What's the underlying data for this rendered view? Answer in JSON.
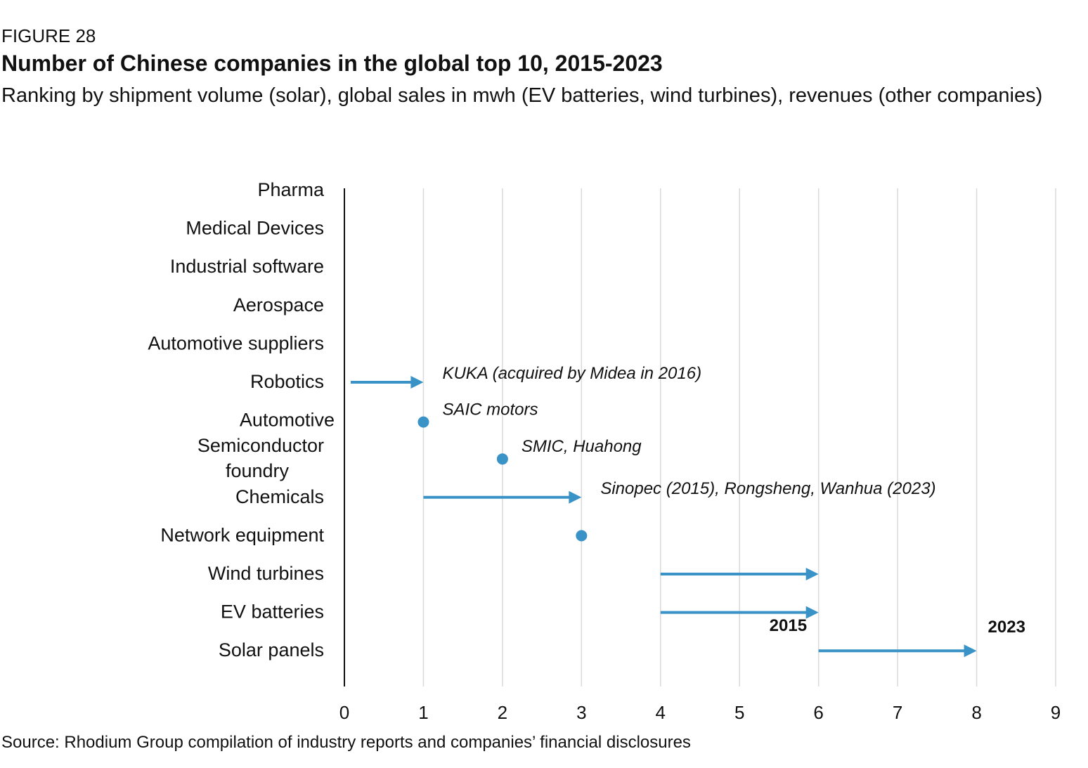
{
  "header": {
    "figure_label": "FIGURE 28",
    "title": "Number of Chinese companies in the global top 10, 2015-2023",
    "subtitle": "Ranking by shipment volume (solar), global sales in mwh (EV batteries, wind turbines), revenues (other companies)"
  },
  "footer": {
    "source": "Source: Rhodium Group compilation of industry reports and companies’ financial disclosures"
  },
  "colors": {
    "series": "#3a93c6",
    "axis": "#111111",
    "grid": "#d9d9d9",
    "text": "#111111"
  },
  "chart_data": {
    "type": "arrow-dot",
    "title": "Number of Chinese companies in the global top 10, 2015-2023",
    "xlim": [
      0,
      9
    ],
    "x_ticks": [
      "0",
      "1",
      "2",
      "3",
      "4",
      "5",
      "6",
      "7",
      "8",
      "9"
    ],
    "grid": true,
    "categories": [
      {
        "label": [
          "Pharma"
        ],
        "from": null,
        "to": null,
        "annotation": ""
      },
      {
        "label": [
          "Medical Devices"
        ],
        "from": null,
        "to": null,
        "annotation": ""
      },
      {
        "label": [
          "Industrial software"
        ],
        "from": null,
        "to": null,
        "annotation": ""
      },
      {
        "label": [
          "Aerospace"
        ],
        "from": null,
        "to": null,
        "annotation": ""
      },
      {
        "label": [
          "Automotive suppliers"
        ],
        "from": null,
        "to": null,
        "annotation": ""
      },
      {
        "label": [
          "Robotics"
        ],
        "from": 0,
        "to": 1,
        "annotation": "KUKA (acquired by Midea in 2016)"
      },
      {
        "label": [
          "Automotive"
        ],
        "from": 1,
        "to": 1,
        "annotation": "SAIC motors"
      },
      {
        "label": [
          "Semiconductor",
          "foundry"
        ],
        "from": 2,
        "to": 2,
        "annotation": "SMIC, Huahong"
      },
      {
        "label": [
          "Chemicals"
        ],
        "from": 1,
        "to": 3,
        "annotation": "Sinopec (2015), Rongsheng, Wanhua (2023)"
      },
      {
        "label": [
          "Network equipment"
        ],
        "from": 3,
        "to": 3,
        "annotation": ""
      },
      {
        "label": [
          "Wind turbines"
        ],
        "from": 4,
        "to": 6,
        "annotation": ""
      },
      {
        "label": [
          "EV batteries"
        ],
        "from": 4,
        "to": 6,
        "annotation": ""
      },
      {
        "label": [
          "Solar panels"
        ],
        "from": 6,
        "to": 8,
        "annotation": ""
      }
    ],
    "legend": {
      "start_label": "2015",
      "end_label": "2023",
      "placement": "above-solar-panels-arrow"
    }
  }
}
